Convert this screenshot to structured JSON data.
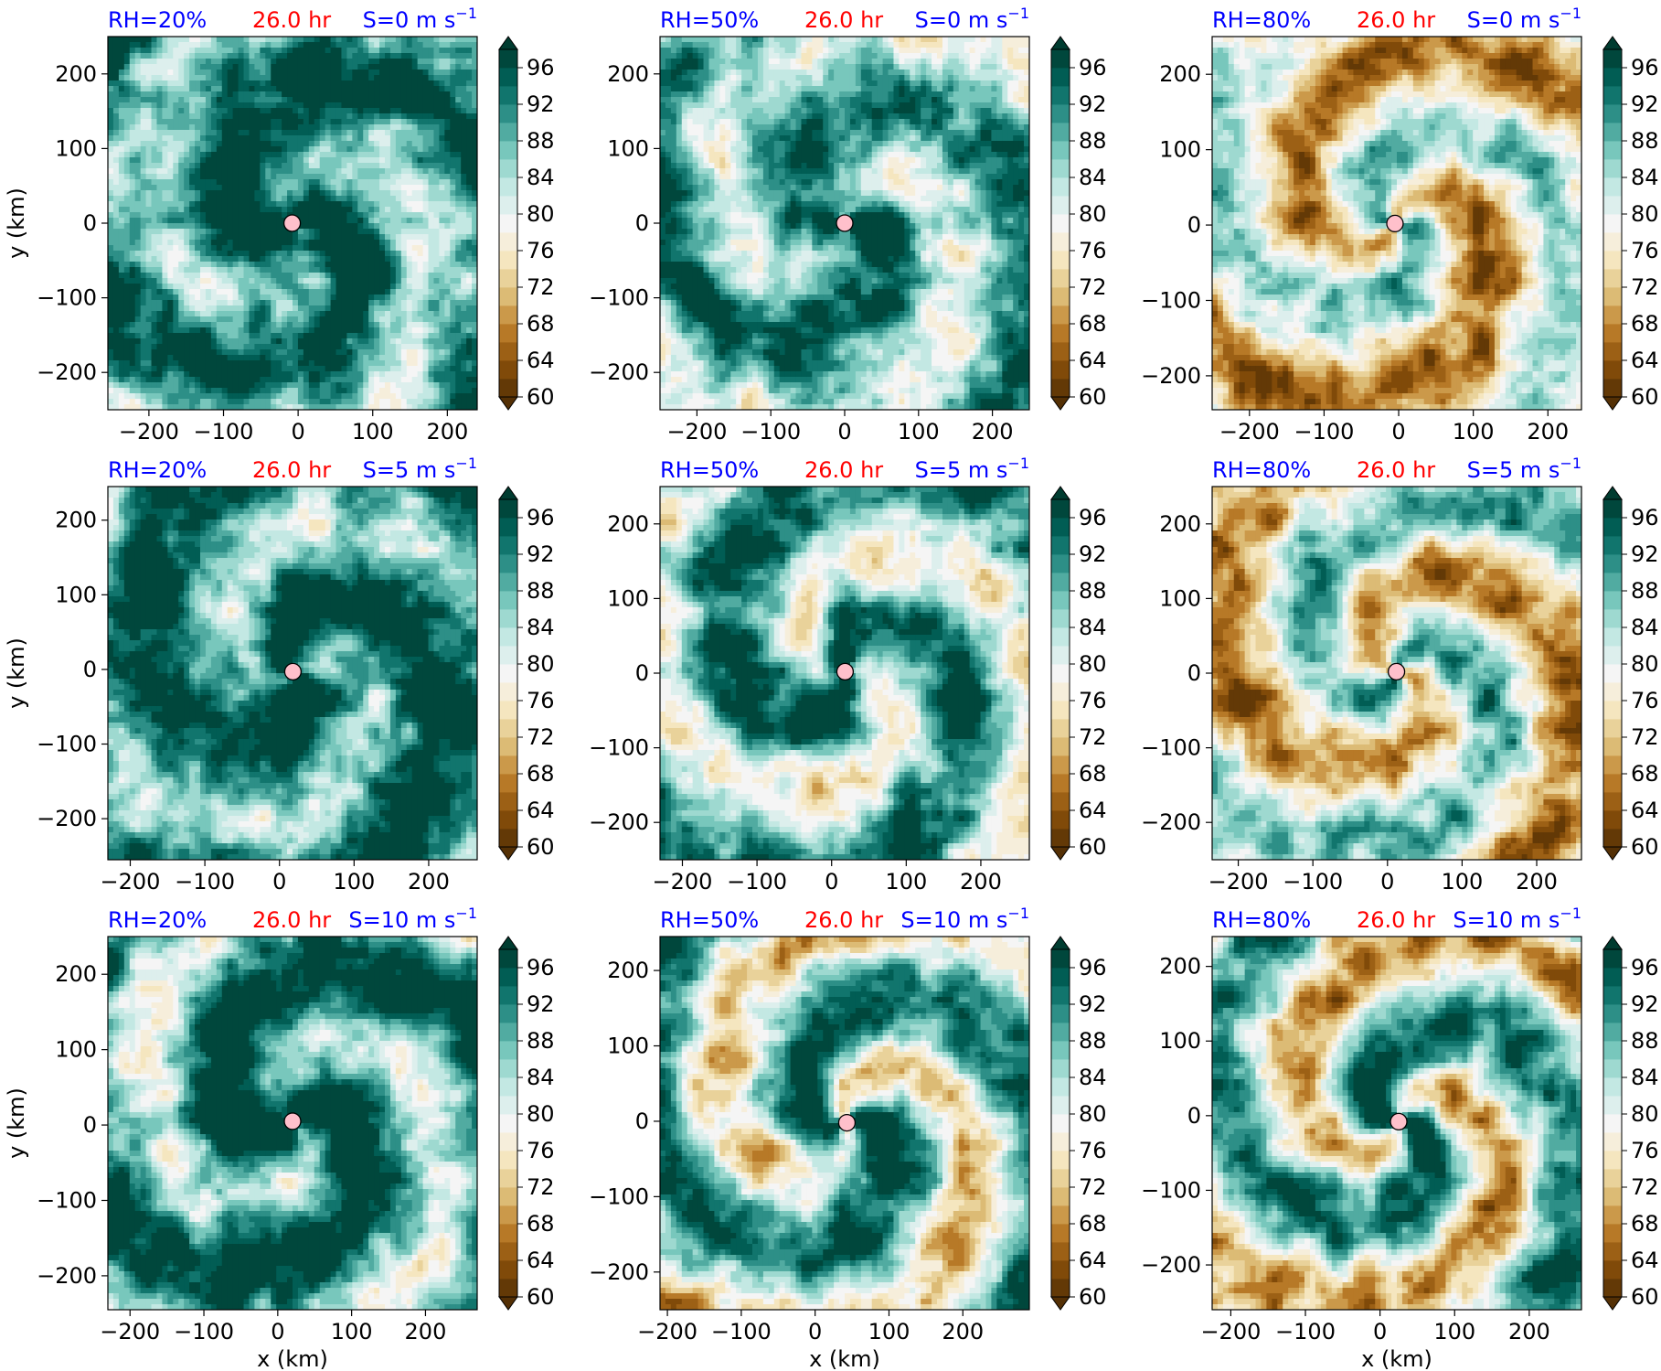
{
  "figure": {
    "rows": [
      {
        "shear_label": "S=0 m s",
        "shear_sup": "−1"
      },
      {
        "shear_label": "S=5 m s",
        "shear_sup": "−1"
      },
      {
        "shear_label": "S=10 m s",
        "shear_sup": "−1"
      }
    ],
    "cols": [
      {
        "rh_label": "RH=20%"
      },
      {
        "rh_label": "RH=50%"
      },
      {
        "rh_label": "RH=80%"
      }
    ],
    "time_label": "26.0 hr",
    "xlabel": "x (km)",
    "ylabel": "y (km)",
    "colors": {
      "title_blue": "#0000ff",
      "title_red": "#ff0000",
      "center_marker": "#ffc0cb"
    }
  },
  "chart_data": {
    "type": "heatmap",
    "colormap": "BrBG",
    "colorbar": {
      "levels_min": 60,
      "levels_max": 98,
      "level_step": 2,
      "tick_labels": [
        "60",
        "64",
        "68",
        "72",
        "76",
        "80",
        "84",
        "88",
        "92",
        "96"
      ],
      "extend": "both"
    },
    "panels": [
      {
        "row": 0,
        "col": 0,
        "rh": 20,
        "shear": 0,
        "xlim": [
          -255,
          240
        ],
        "ylim": [
          -250,
          250
        ],
        "xticks": [
          -200,
          -100,
          0,
          100,
          200
        ],
        "yticks": [
          -200,
          -100,
          0,
          100,
          200
        ],
        "center": [
          -8,
          0
        ],
        "mean_rh_level": 0.78
      },
      {
        "row": 0,
        "col": 1,
        "rh": 50,
        "shear": 0,
        "xlim": [
          -250,
          250
        ],
        "ylim": [
          -250,
          250
        ],
        "xticks": [
          -200,
          -100,
          0,
          100,
          200
        ],
        "yticks": [
          -200,
          -100,
          0,
          100,
          200
        ],
        "center": [
          0,
          0
        ],
        "mean_rh_level": 0.7
      },
      {
        "row": 0,
        "col": 2,
        "rh": 80,
        "shear": 0,
        "xlim": [
          -250,
          245
        ],
        "ylim": [
          -245,
          250
        ],
        "xticks": [
          -200,
          -100,
          0,
          100,
          200
        ],
        "yticks": [
          -200,
          -100,
          0,
          100,
          200
        ],
        "center": [
          -5,
          2
        ],
        "mean_rh_level": 0.4
      },
      {
        "row": 1,
        "col": 0,
        "rh": 20,
        "shear": 5,
        "xlim": [
          -230,
          265
        ],
        "ylim": [
          -255,
          245
        ],
        "xticks": [
          -200,
          -100,
          0,
          100,
          200
        ],
        "yticks": [
          -200,
          -100,
          0,
          100,
          200
        ],
        "center": [
          18,
          -3
        ],
        "mean_rh_level": 0.8
      },
      {
        "row": 1,
        "col": 1,
        "rh": 50,
        "shear": 5,
        "xlim": [
          -230,
          265
        ],
        "ylim": [
          -250,
          250
        ],
        "xticks": [
          -200,
          -100,
          0,
          100,
          200
        ],
        "yticks": [
          -200,
          -100,
          0,
          100,
          200
        ],
        "center": [
          18,
          2
        ],
        "mean_rh_level": 0.68
      },
      {
        "row": 1,
        "col": 2,
        "rh": 80,
        "shear": 5,
        "xlim": [
          -235,
          260
        ],
        "ylim": [
          -250,
          250
        ],
        "xticks": [
          -200,
          -100,
          0,
          100,
          200
        ],
        "yticks": [
          -200,
          -100,
          0,
          100,
          200
        ],
        "center": [
          12,
          2
        ],
        "mean_rh_level": 0.45
      },
      {
        "row": 2,
        "col": 0,
        "rh": 20,
        "shear": 10,
        "xlim": [
          -230,
          270
        ],
        "ylim": [
          -245,
          250
        ],
        "xticks": [
          -200,
          -100,
          0,
          100,
          200
        ],
        "yticks": [
          -200,
          -100,
          0,
          100,
          200
        ],
        "center": [
          20,
          5
        ],
        "mean_rh_level": 0.78
      },
      {
        "row": 2,
        "col": 1,
        "rh": 50,
        "shear": 10,
        "xlim": [
          -210,
          290
        ],
        "ylim": [
          -250,
          245
        ],
        "xticks": [
          -200,
          -100,
          0,
          100,
          200
        ],
        "yticks": [
          -200,
          -100,
          0,
          100,
          200
        ],
        "center": [
          43,
          -2
        ],
        "mean_rh_level": 0.62
      },
      {
        "row": 2,
        "col": 2,
        "rh": 80,
        "shear": 10,
        "xlim": [
          -225,
          270
        ],
        "ylim": [
          -260,
          240
        ],
        "xticks": [
          -200,
          -100,
          0,
          100,
          200
        ],
        "yticks": [
          -200,
          -100,
          0,
          100,
          200
        ],
        "center": [
          25,
          -8
        ],
        "mean_rh_level": 0.55
      }
    ]
  }
}
